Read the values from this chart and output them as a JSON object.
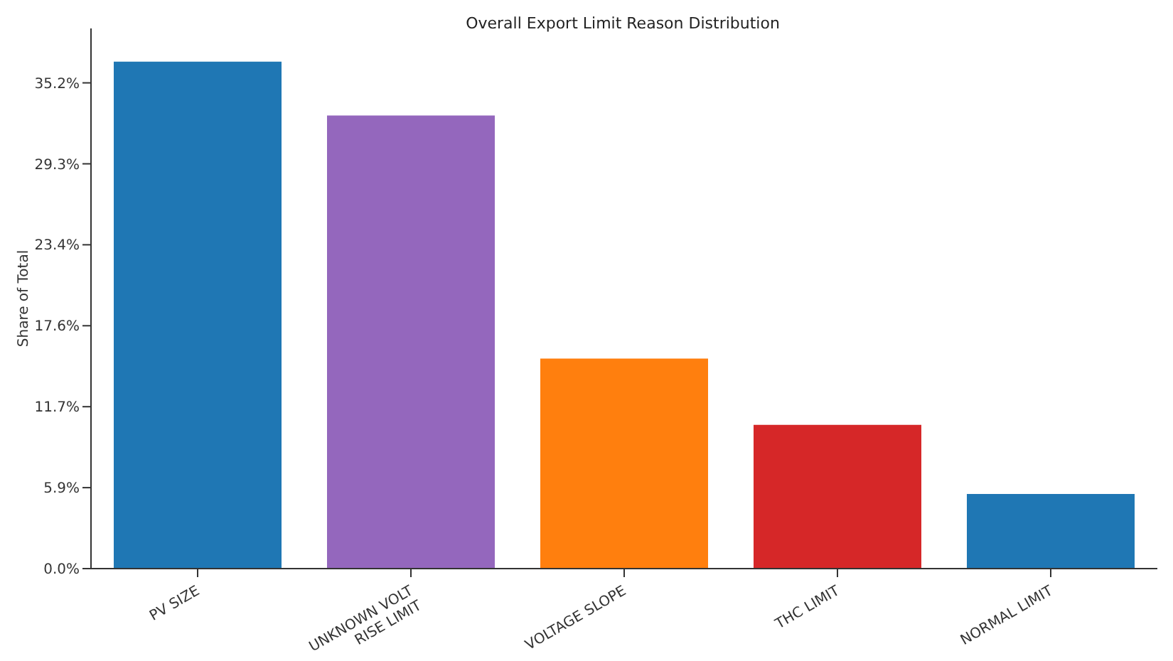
{
  "chart_data": {
    "type": "bar",
    "title": "Overall Export Limit Reason Distribution",
    "ylabel": "Share of Total",
    "categories": [
      "PV SIZE",
      "UNKNOWN VOLT\nRISE LIMIT",
      "VOLTAGE SLOPE",
      "THC LIMIT",
      "NORMAL LIMIT"
    ],
    "values": [
      36.7,
      32.8,
      15.2,
      10.4,
      5.4
    ],
    "colors": [
      "#1f77b4",
      "#9467bd",
      "#ff7f0e",
      "#d62728",
      "#1f77b4"
    ],
    "ylim": [
      0,
      39.1
    ],
    "yticks": [
      {
        "value": 0,
        "label": "0.0%"
      },
      {
        "value": 5.86,
        "label": "5.9%"
      },
      {
        "value": 11.72,
        "label": "11.7%"
      },
      {
        "value": 17.58,
        "label": "17.6%"
      },
      {
        "value": 23.44,
        "label": "23.4%"
      },
      {
        "value": 29.3,
        "label": "29.3%"
      },
      {
        "value": 35.16,
        "label": "35.2%"
      }
    ],
    "grid": false,
    "legend": false
  }
}
